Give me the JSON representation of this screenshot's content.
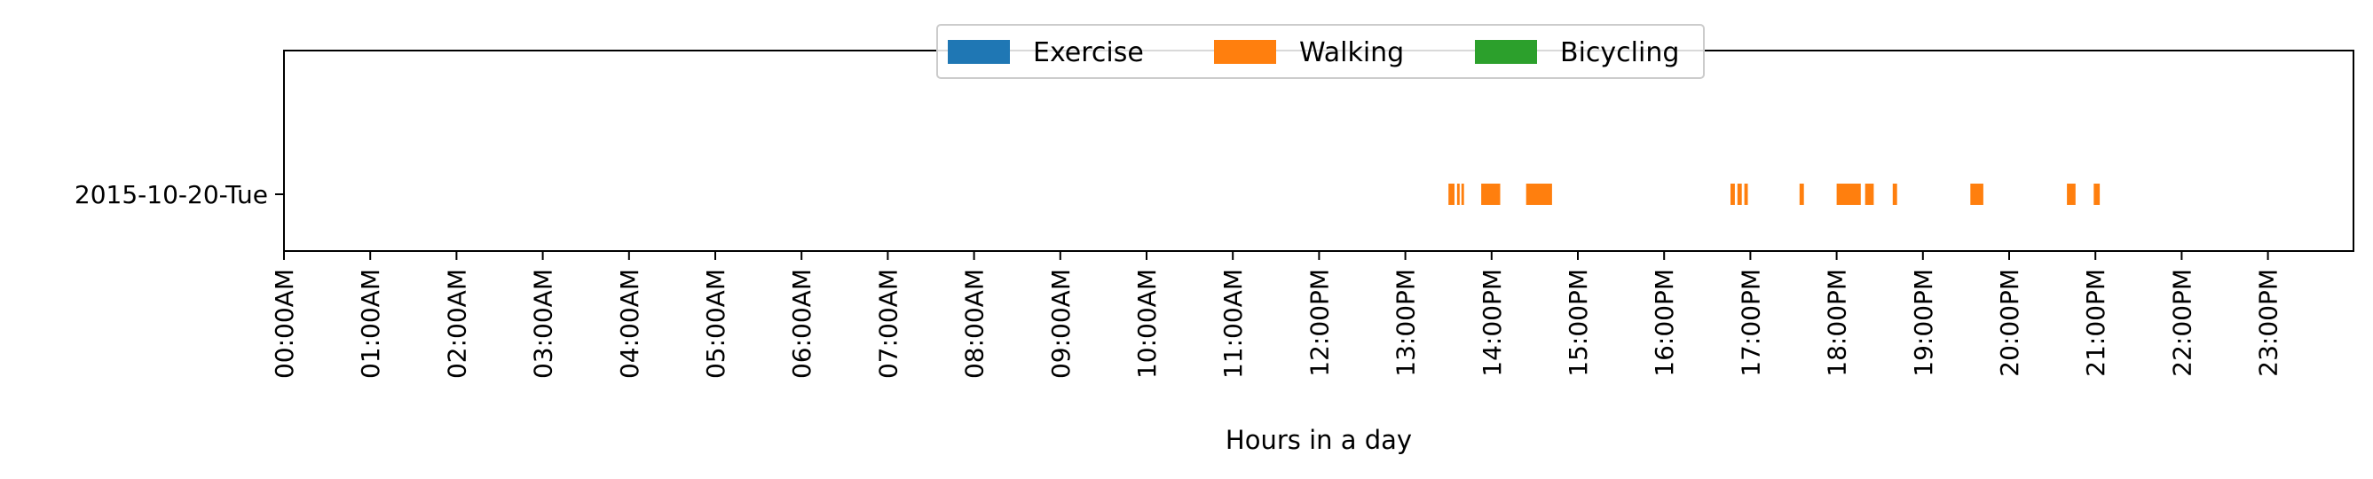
{
  "chart_data": {
    "type": "timeline",
    "xlabel": "Hours in a day",
    "x_unit": "hour of day",
    "xlim": [
      0,
      24
    ],
    "x_ticks": [
      {
        "value": 0,
        "label": "00:00AM"
      },
      {
        "value": 1,
        "label": "01:00AM"
      },
      {
        "value": 2,
        "label": "02:00AM"
      },
      {
        "value": 3,
        "label": "03:00AM"
      },
      {
        "value": 4,
        "label": "04:00AM"
      },
      {
        "value": 5,
        "label": "05:00AM"
      },
      {
        "value": 6,
        "label": "06:00AM"
      },
      {
        "value": 7,
        "label": "07:00AM"
      },
      {
        "value": 8,
        "label": "08:00AM"
      },
      {
        "value": 9,
        "label": "09:00AM"
      },
      {
        "value": 10,
        "label": "10:00AM"
      },
      {
        "value": 11,
        "label": "11:00AM"
      },
      {
        "value": 12,
        "label": "12:00PM"
      },
      {
        "value": 13,
        "label": "13:00PM"
      },
      {
        "value": 14,
        "label": "14:00PM"
      },
      {
        "value": 15,
        "label": "15:00PM"
      },
      {
        "value": 16,
        "label": "16:00PM"
      },
      {
        "value": 17,
        "label": "17:00PM"
      },
      {
        "value": 18,
        "label": "18:00PM"
      },
      {
        "value": 19,
        "label": "19:00PM"
      },
      {
        "value": 20,
        "label": "20:00PM"
      },
      {
        "value": 21,
        "label": "21:00PM"
      },
      {
        "value": 22,
        "label": "22:00PM"
      },
      {
        "value": 23,
        "label": "23:00PM"
      }
    ],
    "categories": [
      "2015-10-20-Tue"
    ],
    "legend": {
      "placement": "top-center",
      "entries": [
        {
          "name": "Exercise",
          "color": "#1f77b4"
        },
        {
          "name": "Walking",
          "color": "#ff7f0e"
        },
        {
          "name": "Bicycling",
          "color": "#2ca02c"
        }
      ]
    },
    "series": [
      {
        "name": "Exercise",
        "color": "#1f77b4",
        "intervals": []
      },
      {
        "name": "Walking",
        "color": "#ff7f0e",
        "intervals": [
          {
            "row": "2015-10-20-Tue",
            "start": 13.5,
            "end": 13.57
          },
          {
            "row": "2015-10-20-Tue",
            "start": 13.6,
            "end": 13.63
          },
          {
            "row": "2015-10-20-Tue",
            "start": 13.65,
            "end": 13.68
          },
          {
            "row": "2015-10-20-Tue",
            "start": 13.88,
            "end": 14.1
          },
          {
            "row": "2015-10-20-Tue",
            "start": 14.4,
            "end": 14.7
          },
          {
            "row": "2015-10-20-Tue",
            "start": 16.77,
            "end": 16.82
          },
          {
            "row": "2015-10-20-Tue",
            "start": 16.85,
            "end": 16.9
          },
          {
            "row": "2015-10-20-Tue",
            "start": 16.93,
            "end": 16.97
          },
          {
            "row": "2015-10-20-Tue",
            "start": 17.57,
            "end": 17.62
          },
          {
            "row": "2015-10-20-Tue",
            "start": 18.0,
            "end": 18.28
          },
          {
            "row": "2015-10-20-Tue",
            "start": 18.33,
            "end": 18.43
          },
          {
            "row": "2015-10-20-Tue",
            "start": 18.65,
            "end": 18.7
          },
          {
            "row": "2015-10-20-Tue",
            "start": 19.55,
            "end": 19.7
          },
          {
            "row": "2015-10-20-Tue",
            "start": 20.67,
            "end": 20.77
          },
          {
            "row": "2015-10-20-Tue",
            "start": 20.98,
            "end": 21.05
          }
        ]
      },
      {
        "name": "Bicycling",
        "color": "#2ca02c",
        "intervals": []
      }
    ],
    "grid": false
  }
}
